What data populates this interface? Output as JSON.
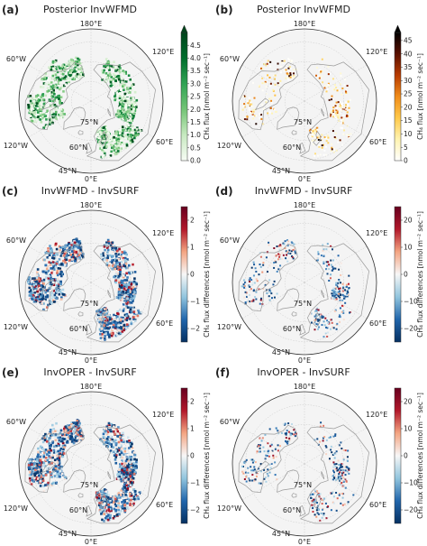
{
  "figure": {
    "panels": [
      {
        "id": "a",
        "label": "(a)",
        "title": "Posterior InvWFMD",
        "colormap": "greens",
        "colorbar": {
          "label": "CH₄ flux [nmol m⁻² sec⁻¹]",
          "ticks": [
            "0.0",
            "0.5",
            "1.0",
            "1.5",
            "2.0",
            "2.5",
            "3.0",
            "3.5",
            "4.0",
            "4.5"
          ],
          "range": [
            0,
            5
          ],
          "extend": "max"
        }
      },
      {
        "id": "b",
        "label": "(b)",
        "title": "Posterior InvWFMD",
        "colormap": "afmhot_r",
        "colorbar": {
          "label": "CH₄ flux [nmol m⁻² sec⁻¹]",
          "ticks": [
            "0",
            "5",
            "10",
            "15",
            "20",
            "25",
            "30",
            "35",
            "40",
            "45"
          ],
          "range": [
            0,
            48
          ],
          "extend": "max"
        }
      },
      {
        "id": "c",
        "label": "(c)",
        "title": "InvWFMD - InvSURF",
        "colormap": "rdbu_r",
        "colorbar": {
          "label": "CH₄ flux differences [nmol m⁻² sec⁻¹]",
          "ticks": [
            "−2",
            "−1",
            "0",
            "1",
            "2"
          ],
          "range": [
            -2.5,
            2.5
          ],
          "extend": "none"
        }
      },
      {
        "id": "d",
        "label": "(d)",
        "title": "InvWFMD - InvSURF",
        "colormap": "rdbu_r",
        "colorbar": {
          "label": "CH₄ flux differences [nmol m⁻² sec⁻¹]",
          "ticks": [
            "−20",
            "−10",
            "0",
            "10",
            "20"
          ],
          "range": [
            -25,
            25
          ],
          "extend": "none"
        }
      },
      {
        "id": "e",
        "label": "(e)",
        "title": "InvOPER - InvSURF",
        "colormap": "rdbu_r",
        "colorbar": {
          "label": "CH₄ flux differences [nmol m⁻² sec⁻¹]",
          "ticks": [
            "−2",
            "−1",
            "0",
            "1",
            "2"
          ],
          "range": [
            -2.5,
            2.5
          ],
          "extend": "none"
        }
      },
      {
        "id": "f",
        "label": "(f)",
        "title": "InvOPER - InvSURF",
        "colormap": "rdbu_r",
        "colorbar": {
          "label": "CH₄ flux differences [nmol m⁻² sec⁻¹]",
          "ticks": [
            "−20",
            "−10",
            "0",
            "10",
            "20"
          ],
          "range": [
            -25,
            25
          ],
          "extend": "none"
        }
      }
    ],
    "map_labels": {
      "lon_180": "180°E",
      "lon_120e": "120°E",
      "lon_60e": "60°E",
      "lon_0": "0°E",
      "lon_60w": "60°W",
      "lon_120w": "120°W",
      "lat_75": "75°N",
      "lat_60": "60°N",
      "lat_45": "45°N"
    },
    "colors": {
      "greens": [
        "#f7fcf5",
        "#c7e9c0",
        "#74c476",
        "#31a354",
        "#006d2c",
        "#00441b"
      ],
      "afmhot_r": [
        "#ffffff",
        "#fff3b0",
        "#ffc94a",
        "#f08c1a",
        "#b83b00",
        "#5a1000",
        "#000000"
      ],
      "rdbu_r": [
        "#053061",
        "#2166ac",
        "#92c5de",
        "#f7f7f7",
        "#f4a582",
        "#b2182b",
        "#67001f"
      ],
      "map_bg": "#f4f4f4",
      "coast": "#9a9a9a"
    }
  }
}
